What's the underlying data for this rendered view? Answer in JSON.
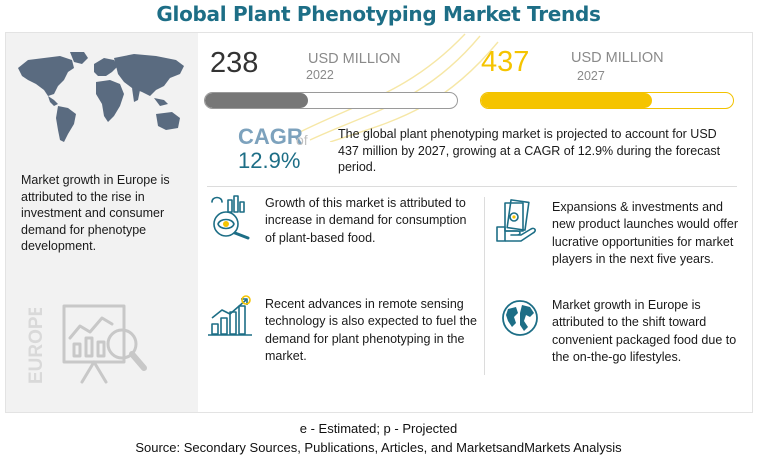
{
  "title": "Global Plant Phenotyping Market Trends",
  "left_panel": {
    "text": "Market growth in Europe is attributed to the rise in investment and consumer demand for phenotype development.",
    "region_label": "EUROPE"
  },
  "stats": {
    "y2022": {
      "value": "238",
      "unit": "USD MILLION",
      "year": "2022",
      "bar_fill_percent": 41
    },
    "y2027": {
      "value": "437",
      "unit": "USD MILLION",
      "year": "2027",
      "bar_fill_percent": 68
    }
  },
  "cagr": {
    "label": "CAGR",
    "of": "of",
    "value": "12.9%",
    "description": "The global plant phenotyping market is projected to account for USD 437 million by 2027, growing at a CAGR of 12.9% during the forecast period."
  },
  "findings": [
    {
      "icon": "food-analysis-icon",
      "text": "Growth of this market is attributed to increase in demand for consumption of plant-based food."
    },
    {
      "icon": "money-hand-icon",
      "text": "Expansions & investments and new product launches would offer lucrative opportunities for market players in the next five years."
    },
    {
      "icon": "growth-chart-icon",
      "text": "Recent advances in remote sensing technology is also expected to fuel the demand for plant phenotyping in the market."
    },
    {
      "icon": "globe-icon",
      "text": "Market growth in Europe is attributed to the shift toward convenient packaged food due to the on-the-go lifestyles."
    }
  ],
  "footnotes": {
    "legend": "e - Estimated; p - Projected",
    "source": "Source: Secondary Sources, Publications, Articles, and MarketsandMarkets Analysis"
  },
  "colors": {
    "title": "#1d6e86",
    "accent_yellow": "#f5c400",
    "bar_grey": "#777777",
    "cagr_label": "#7da2bd",
    "map": "#5a6b80"
  }
}
